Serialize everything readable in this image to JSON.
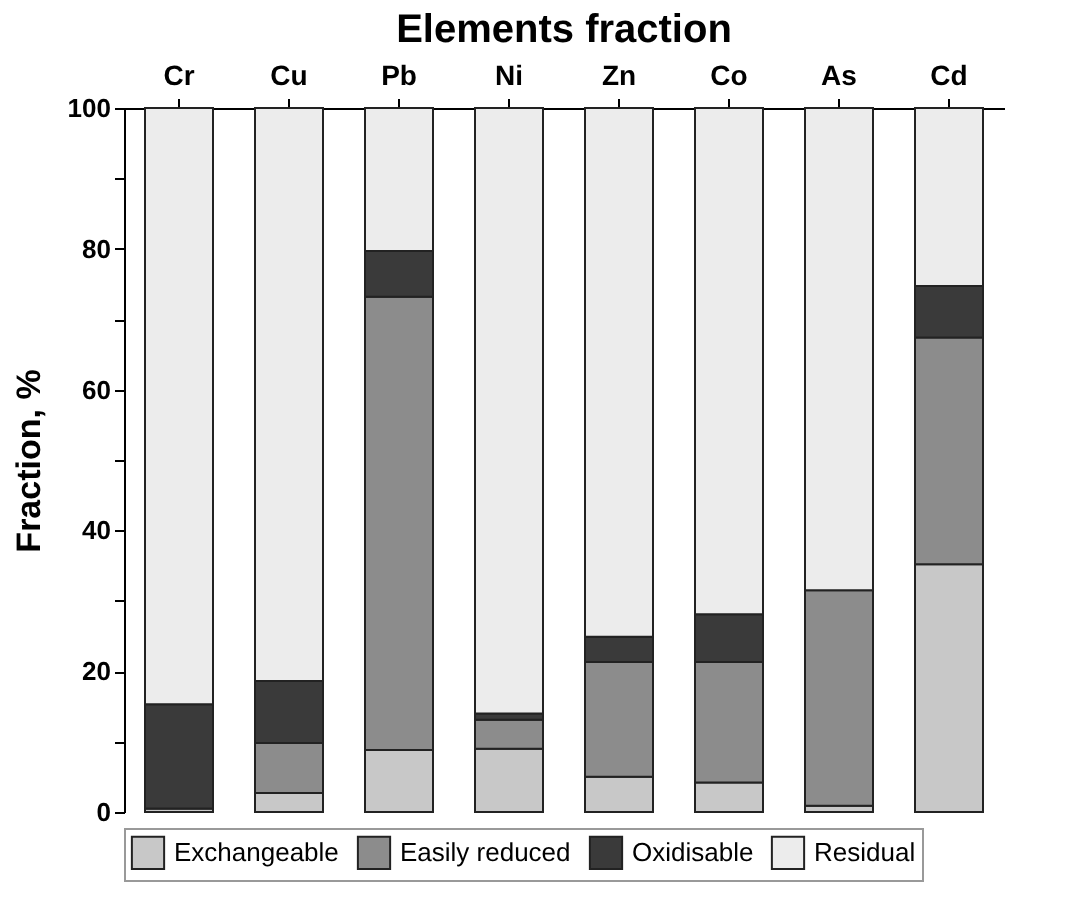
{
  "chart_data": {
    "type": "bar",
    "title": "Elements fraction",
    "ylabel": "Fraction, %",
    "categories": [
      "Cr",
      "Cu",
      "Pb",
      "Ni",
      "Zn",
      "Co",
      "As",
      "Cd"
    ],
    "stacked": true,
    "legend": "bottom",
    "ylim": [
      0,
      100
    ],
    "yticks": [
      0,
      {
        "value": 10,
        "label": null
      },
      20,
      {
        "value": 30,
        "label": null
      },
      40,
      {
        "value": 50,
        "label": null
      },
      60,
      {
        "value": 70,
        "label": null
      },
      80,
      {
        "value": 90,
        "label": null
      },
      100
    ],
    "series": [
      {
        "name": "Exchangeable",
        "color": "#c8c8c8",
        "values": [
          0.5,
          2.7,
          8.8,
          9.0,
          5.0,
          4.2,
          0.9,
          35.2
        ]
      },
      {
        "name": "Easily reduced",
        "color": "#8c8c8c",
        "values": [
          0,
          7.1,
          64.4,
          4.1,
          16.3,
          17.1,
          30.6,
          32.2
        ]
      },
      {
        "name": "Oxidisable",
        "color": "#3a3a3a",
        "values": [
          14.8,
          8.8,
          6.5,
          0.9,
          3.6,
          6.8,
          null,
          7.3
        ]
      },
      {
        "name": "Residual",
        "color": "#ececec",
        "values": [
          84.7,
          81.4,
          20.3,
          86.0,
          75.1,
          71.9,
          68.5,
          25.3
        ]
      }
    ]
  }
}
